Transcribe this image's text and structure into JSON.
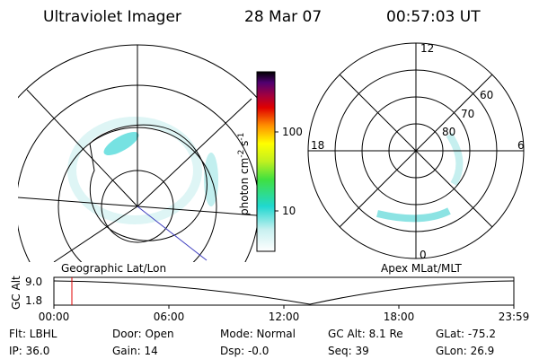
{
  "header": {
    "instrument": "Ultraviolet Imager",
    "date": "28 Mar 07",
    "time": "00:57:03 UT"
  },
  "left_panel": {
    "label": "Geographic Lat/Lon"
  },
  "colorbar": {
    "ticks": [
      "100",
      "10"
    ],
    "unit": {
      "base": "photon cm",
      "exp1": "-2",
      "mid": "s",
      "exp2": "-1"
    }
  },
  "right_panel": {
    "label": "Apex MLat/MLT",
    "mlt": [
      "12",
      "18",
      "6",
      "0"
    ],
    "mlat": [
      "60",
      "70",
      "80"
    ]
  },
  "timeline": {
    "axis_label": "GC Alt",
    "yticks": [
      "9.0",
      "1.8"
    ],
    "xticks": [
      "00:00",
      "06:00",
      "12:00",
      "18:00",
      "23:59"
    ]
  },
  "footer": {
    "rows": [
      [
        "Flt: LBHL",
        "Door: Open",
        "Mode: Normal",
        "GC Alt: 8.1 Re",
        "GLat: -75.2"
      ],
      [
        "IP: 36.0",
        "Gain: 14",
        "Dsp:  -0.0",
        "Seq: 39",
        "GLon:  26.9"
      ]
    ]
  }
}
